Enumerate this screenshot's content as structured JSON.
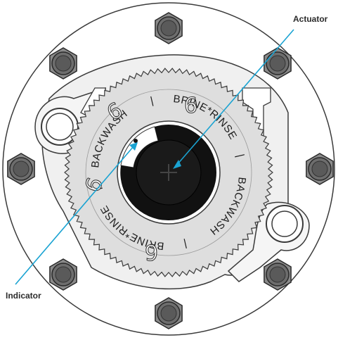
{
  "callouts": {
    "actuator": {
      "label": "Actuator"
    },
    "indicator": {
      "label": "Indicator"
    }
  },
  "dial": {
    "labels": [
      "BACKWASH",
      "BRINE*RINSE",
      "BACKWASH",
      "BRINE*RINSE"
    ],
    "separator": "|",
    "six_glyph": "6"
  },
  "colors": {
    "callout_line": "#1aa3d2",
    "bolt": "#6d6d6d",
    "plate": "#ececec",
    "dial": "#dcdcdc",
    "hub": "#111111"
  }
}
